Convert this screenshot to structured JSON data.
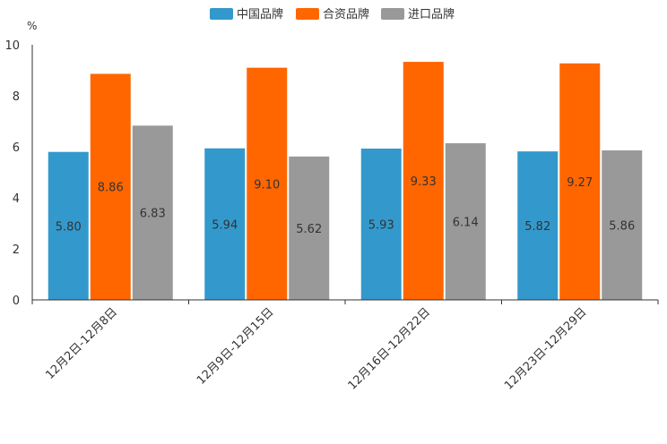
{
  "chart_data": {
    "type": "bar",
    "title": "",
    "ylabel": "%",
    "xlabel": "",
    "ylim": [
      0,
      10
    ],
    "yticks": [
      "0",
      "2",
      "4",
      "6",
      "8",
      "10"
    ],
    "categories": [
      "12月2日-12月8日",
      "12月9日-12月15日",
      "12月16日-12月22日",
      "12月23日-12月29日"
    ],
    "series": [
      {
        "name": "中国品牌",
        "color": "#3399cc",
        "values": [
          5.8,
          5.94,
          5.93,
          5.82
        ],
        "labels": [
          "5.80",
          "5.94",
          "5.93",
          "5.82"
        ]
      },
      {
        "name": "合资品牌",
        "color": "#ff6600",
        "values": [
          8.86,
          9.1,
          9.33,
          9.27
        ],
        "labels": [
          "8.86",
          "9.10",
          "9.33",
          "9.27"
        ]
      },
      {
        "name": "进口品牌",
        "color": "#999999",
        "values": [
          6.83,
          5.62,
          6.14,
          5.86
        ],
        "labels": [
          "6.83",
          "5.62",
          "6.14",
          "5.86"
        ]
      }
    ],
    "legend_position": "top-center",
    "grid": false
  }
}
